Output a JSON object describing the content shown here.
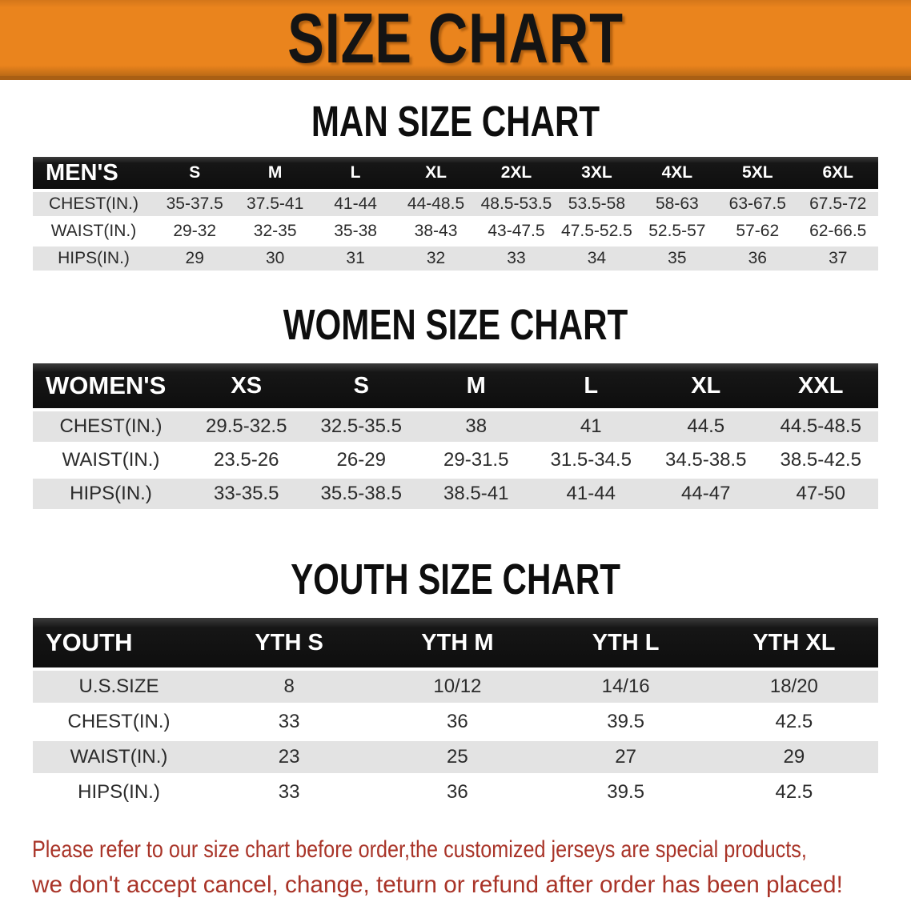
{
  "banner": {
    "title": "SIZE CHART"
  },
  "colors": {
    "banner_orange": "#EA841D",
    "header_black": "#141414",
    "row_gray": "#E3E3E3",
    "note_red": "#A93428"
  },
  "tables": [
    {
      "title": "MAN SIZE CHART",
      "header_label": "MEN'S",
      "columns": [
        "S",
        "M",
        "L",
        "XL",
        "2XL",
        "3XL",
        "4XL",
        "5XL",
        "6XL"
      ],
      "rows": [
        {
          "label": "CHEST(IN.)",
          "values": [
            "35-37.5",
            "37.5-41",
            "41-44",
            "44-48.5",
            "48.5-53.5",
            "53.5-58",
            "58-63",
            "63-67.5",
            "67.5-72"
          ]
        },
        {
          "label": "WAIST(IN.)",
          "values": [
            "29-32",
            "32-35",
            "35-38",
            "38-43",
            "43-47.5",
            "47.5-52.5",
            "52.5-57",
            "57-62",
            "62-66.5"
          ]
        },
        {
          "label": "HIPS(IN.)",
          "values": [
            "29",
            "30",
            "31",
            "32",
            "33",
            "34",
            "35",
            "36",
            "37"
          ]
        }
      ]
    },
    {
      "title": "WOMEN SIZE CHART",
      "header_label": "WOMEN'S",
      "columns": [
        "XS",
        "S",
        "M",
        "L",
        "XL",
        "XXL"
      ],
      "rows": [
        {
          "label": "CHEST(IN.)",
          "values": [
            "29.5-32.5",
            "32.5-35.5",
            "38",
            "41",
            "44.5",
            "44.5-48.5"
          ]
        },
        {
          "label": "WAIST(IN.)",
          "values": [
            "23.5-26",
            "26-29",
            "29-31.5",
            "31.5-34.5",
            "34.5-38.5",
            "38.5-42.5"
          ]
        },
        {
          "label": "HIPS(IN.)",
          "values": [
            "33-35.5",
            "35.5-38.5",
            "38.5-41",
            "41-44",
            "44-47",
            "47-50"
          ]
        }
      ]
    },
    {
      "title": "YOUTH SIZE CHART",
      "header_label": "YOUTH",
      "columns": [
        "YTH S",
        "YTH M",
        "YTH L",
        "YTH XL"
      ],
      "rows": [
        {
          "label": "U.S.SIZE",
          "values": [
            "8",
            "10/12",
            "14/16",
            "18/20"
          ]
        },
        {
          "label": "CHEST(IN.)",
          "values": [
            "33",
            "36",
            "39.5",
            "42.5"
          ]
        },
        {
          "label": "WAIST(IN.)",
          "values": [
            "23",
            "25",
            "27",
            "29"
          ]
        },
        {
          "label": "HIPS(IN.)",
          "values": [
            "33",
            "36",
            "39.5",
            "42.5"
          ]
        }
      ]
    }
  ],
  "note": {
    "line1": "Please refer to our size chart before order,the customized jerseys are special products,",
    "line2": "we don't accept cancel, change, teturn or refund after order has been placed!"
  }
}
